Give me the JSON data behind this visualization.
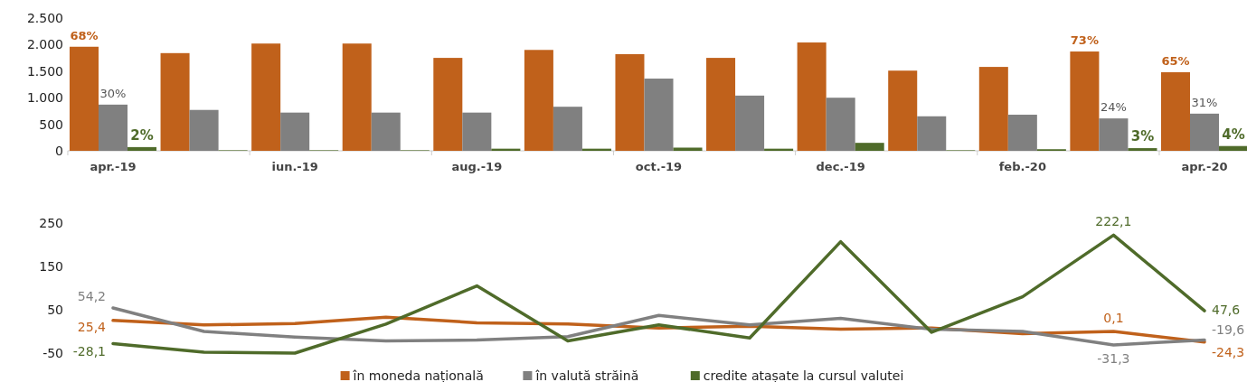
{
  "chart_data": [
    {
      "type": "bar",
      "categories": [
        "apr.-19",
        null,
        "iun.-19",
        null,
        "aug.-19",
        null,
        "oct.-19",
        null,
        "dec.-19",
        null,
        "feb.-20",
        null,
        "apr.-20"
      ],
      "ylim": [
        0,
        2500
      ],
      "yticks": [
        0,
        {
          "value": 500,
          "label": "500"
        },
        {
          "value": 1000,
          "label": "1.000"
        },
        {
          "value": 1500,
          "label": "1.500"
        },
        {
          "value": 2000,
          "label": "2.000"
        },
        {
          "value": 2500,
          "label": "2.500"
        }
      ],
      "series": [
        {
          "color": "#c0611b",
          "values": [
            1960,
            1840,
            2020,
            2020,
            1750,
            1900,
            1820,
            1750,
            2040,
            1510,
            1580,
            1870,
            1480
          ]
        },
        {
          "color": "#808080",
          "values": [
            870,
            770,
            720,
            720,
            720,
            830,
            1360,
            1040,
            1000,
            650,
            680,
            610,
            700
          ]
        },
        {
          "color": "#4f6b2a",
          "values": [
            70,
            10,
            10,
            10,
            40,
            40,
            60,
            40,
            150,
            10,
            30,
            50,
            90
          ]
        }
      ],
      "annotations": [
        {
          "text": "68%",
          "y": 1960
        },
        {
          "text": "30%",
          "y": 870
        },
        {
          "text": "2%",
          "y": 70
        },
        {
          "text": "73%",
          "y": 1870
        },
        {
          "text": "24%",
          "y": 610
        },
        {
          "text": "3%",
          "y": 50
        },
        {
          "text": "65%",
          "y": 1480
        },
        {
          "text": "31%",
          "y": 700
        },
        {
          "text": "4%",
          "y": 90
        }
      ]
    },
    {
      "type": "line",
      "categories": [
        null,
        null,
        null,
        null,
        null,
        null,
        null,
        null,
        null,
        null,
        null,
        null,
        null
      ],
      "ylim": [
        -50,
        250
      ],
      "yticks": [
        -50,
        50,
        150,
        250
      ],
      "legend": "bottom",
      "series": [
        {
          "name": "în moneda națională",
          "color": "#c0611b",
          "values": [
            25.4,
            15,
            18,
            33,
            20,
            17,
            8,
            12,
            5,
            8,
            -5,
            0.1,
            -24.3
          ],
          "value_labels": [
            "25,4",
            null,
            null,
            null,
            null,
            null,
            null,
            null,
            null,
            null,
            null,
            "0,1",
            "-24,3"
          ]
        },
        {
          "name": "în valută străină",
          "color": "#808080",
          "values": [
            54.2,
            0,
            -13,
            -22,
            -20,
            -12,
            37,
            15,
            30,
            5,
            0,
            -31.3,
            -19.6
          ],
          "value_labels": [
            "54,2",
            null,
            null,
            null,
            null,
            null,
            null,
            null,
            null,
            null,
            null,
            "-31,3",
            "-19,6"
          ]
        },
        {
          "name": "credite atașate la cursul valutei",
          "color": "#4f6b2a",
          "values": [
            -28.1,
            -48,
            -50,
            17,
            105,
            -22,
            15,
            -15,
            207,
            -2,
            80,
            222.1,
            47.6
          ],
          "value_labels": [
            "-28,1",
            null,
            null,
            null,
            null,
            null,
            null,
            null,
            null,
            null,
            null,
            "222,1",
            "47,6"
          ]
        }
      ]
    }
  ]
}
